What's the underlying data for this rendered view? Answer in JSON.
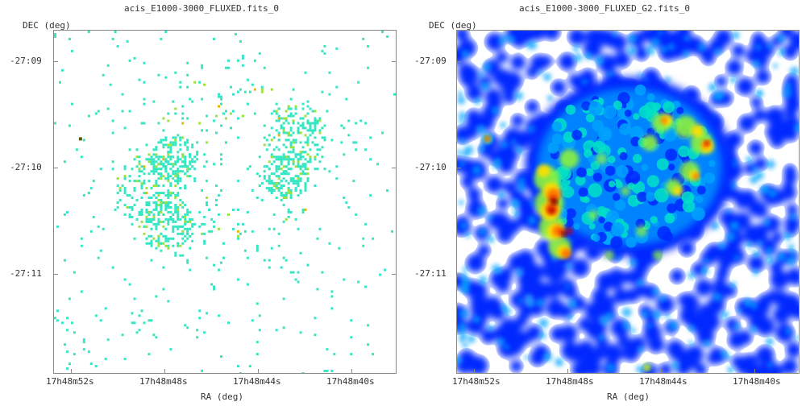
{
  "panels": [
    {
      "title": "acis_E1000-3000_FLUXED.fits_0",
      "y_axis_label": "DEC (deg)",
      "x_axis_label": "RA (deg)",
      "y_ticks": [
        "-27:09",
        "-27:10",
        "-27:11"
      ],
      "x_ticks": [
        "17h48m52s",
        "17h48m48s",
        "17h48m44s",
        "17h48m40s"
      ],
      "image_style": "sparse-counts",
      "colors": {
        "low": "#33e6c4",
        "mid": "#9be23a",
        "high": "#e5b800"
      }
    },
    {
      "title": "acis_E1000-3000_FLUXED_G2.fits_0",
      "y_axis_label": "DEC (deg)",
      "x_axis_label": "RA (deg)",
      "y_ticks": [
        "-27:09",
        "-27:10",
        "-27:11"
      ],
      "x_ticks": [
        "17h48m52s",
        "17h48m48s",
        "17h48m44s",
        "17h48m40s"
      ],
      "image_style": "smoothed-jet",
      "colors": {
        "c1": "#0028ff",
        "c2": "#00a2ff",
        "c3": "#00e0c8",
        "c4": "#8cf23c",
        "c5": "#ffe000",
        "c6": "#ff6a00",
        "c7": "#c00000",
        "c8": "#4a0000"
      }
    }
  ]
}
